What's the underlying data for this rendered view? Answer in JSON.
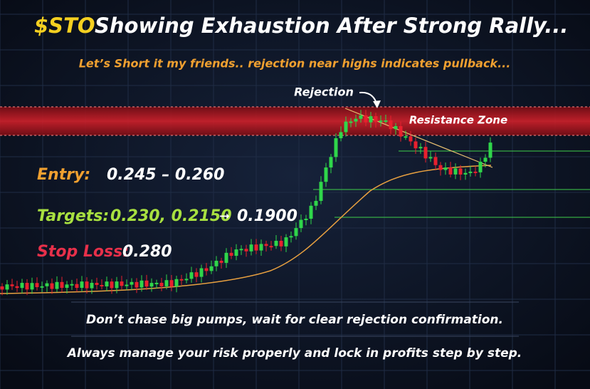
{
  "header": {
    "ticker": "$STO",
    "title": "Showing Exhaustion After Strong Rally...",
    "subtitle": "Let’s Short it my friends.. rejection near highs indicates pullback..."
  },
  "annotations": {
    "rejection": "Rejection",
    "resistance": "Resistance Zone"
  },
  "levels": {
    "entry": {
      "label": "Entry:",
      "value": "0.245 – 0.260"
    },
    "targets": {
      "label": "Targets:",
      "value": "0.230, 0.2150",
      "arrow": "➞",
      "final": "0.1900"
    },
    "stop_loss": {
      "label": "Stop Loss:",
      "value": "0.280"
    }
  },
  "footer": {
    "line1": "Don’t chase big pumps, wait for clear rejection confirmation.",
    "line2": "Always manage your risk properly and lock in profits step by step."
  }
}
